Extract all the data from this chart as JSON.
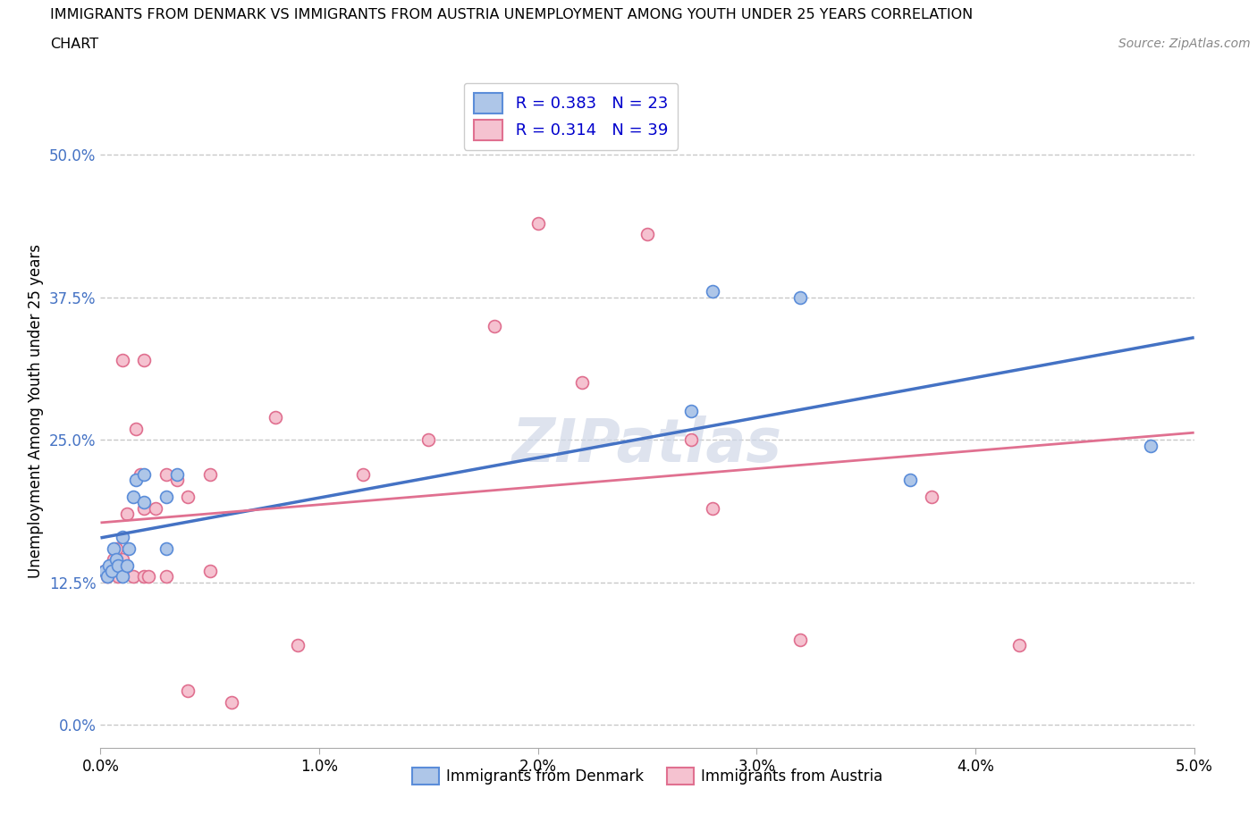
{
  "title_line1": "IMMIGRANTS FROM DENMARK VS IMMIGRANTS FROM AUSTRIA UNEMPLOYMENT AMONG YOUTH UNDER 25 YEARS CORRELATION",
  "title_line2": "CHART",
  "source": "Source: ZipAtlas.com",
  "ylabel": "Unemployment Among Youth under 25 years",
  "xlim": [
    0.0,
    0.05
  ],
  "ylim": [
    -0.02,
    0.57
  ],
  "yticks": [
    0.0,
    0.125,
    0.25,
    0.375,
    0.5
  ],
  "ytick_labels": [
    "0.0%",
    "12.5%",
    "25.0%",
    "37.5%",
    "50.0%"
  ],
  "xticks": [
    0.0,
    0.01,
    0.02,
    0.03,
    0.04,
    0.05
  ],
  "xtick_labels": [
    "0.0%",
    "1.0%",
    "2.0%",
    "3.0%",
    "4.0%",
    "5.0%"
  ],
  "denmark_color": "#aec6e8",
  "denmark_edge_color": "#5b8dd9",
  "austria_color": "#f5c2d0",
  "austria_edge_color": "#e07090",
  "denmark_line_color": "#4472c4",
  "austria_line_color": "#e07090",
  "R_denmark": 0.383,
  "N_denmark": 23,
  "R_austria": 0.314,
  "N_austria": 39,
  "watermark": "ZIPatlas",
  "denmark_x": [
    0.0002,
    0.0003,
    0.0004,
    0.0005,
    0.0006,
    0.0007,
    0.0008,
    0.001,
    0.001,
    0.0012,
    0.0013,
    0.0015,
    0.0016,
    0.002,
    0.002,
    0.003,
    0.003,
    0.0035,
    0.027,
    0.028,
    0.032,
    0.037,
    0.048
  ],
  "denmark_y": [
    0.135,
    0.13,
    0.14,
    0.135,
    0.155,
    0.145,
    0.14,
    0.13,
    0.165,
    0.14,
    0.155,
    0.2,
    0.215,
    0.195,
    0.22,
    0.2,
    0.155,
    0.22,
    0.275,
    0.38,
    0.375,
    0.215,
    0.245
  ],
  "austria_x": [
    0.0002,
    0.0003,
    0.0004,
    0.0005,
    0.0006,
    0.0007,
    0.0008,
    0.001,
    0.001,
    0.0012,
    0.0015,
    0.0016,
    0.0018,
    0.002,
    0.002,
    0.002,
    0.0022,
    0.0025,
    0.003,
    0.003,
    0.0035,
    0.004,
    0.004,
    0.005,
    0.005,
    0.006,
    0.008,
    0.009,
    0.012,
    0.015,
    0.018,
    0.02,
    0.022,
    0.025,
    0.027,
    0.028,
    0.032,
    0.038,
    0.042
  ],
  "austria_y": [
    0.135,
    0.13,
    0.135,
    0.14,
    0.145,
    0.155,
    0.13,
    0.145,
    0.32,
    0.185,
    0.13,
    0.26,
    0.22,
    0.13,
    0.19,
    0.32,
    0.13,
    0.19,
    0.13,
    0.22,
    0.215,
    0.03,
    0.2,
    0.135,
    0.22,
    0.02,
    0.27,
    0.07,
    0.22,
    0.25,
    0.35,
    0.44,
    0.3,
    0.43,
    0.25,
    0.19,
    0.075,
    0.2,
    0.07
  ],
  "marker_size": 100,
  "grid_color": "#c8c8c8",
  "background_color": "#ffffff",
  "tick_color": "#4472c4"
}
